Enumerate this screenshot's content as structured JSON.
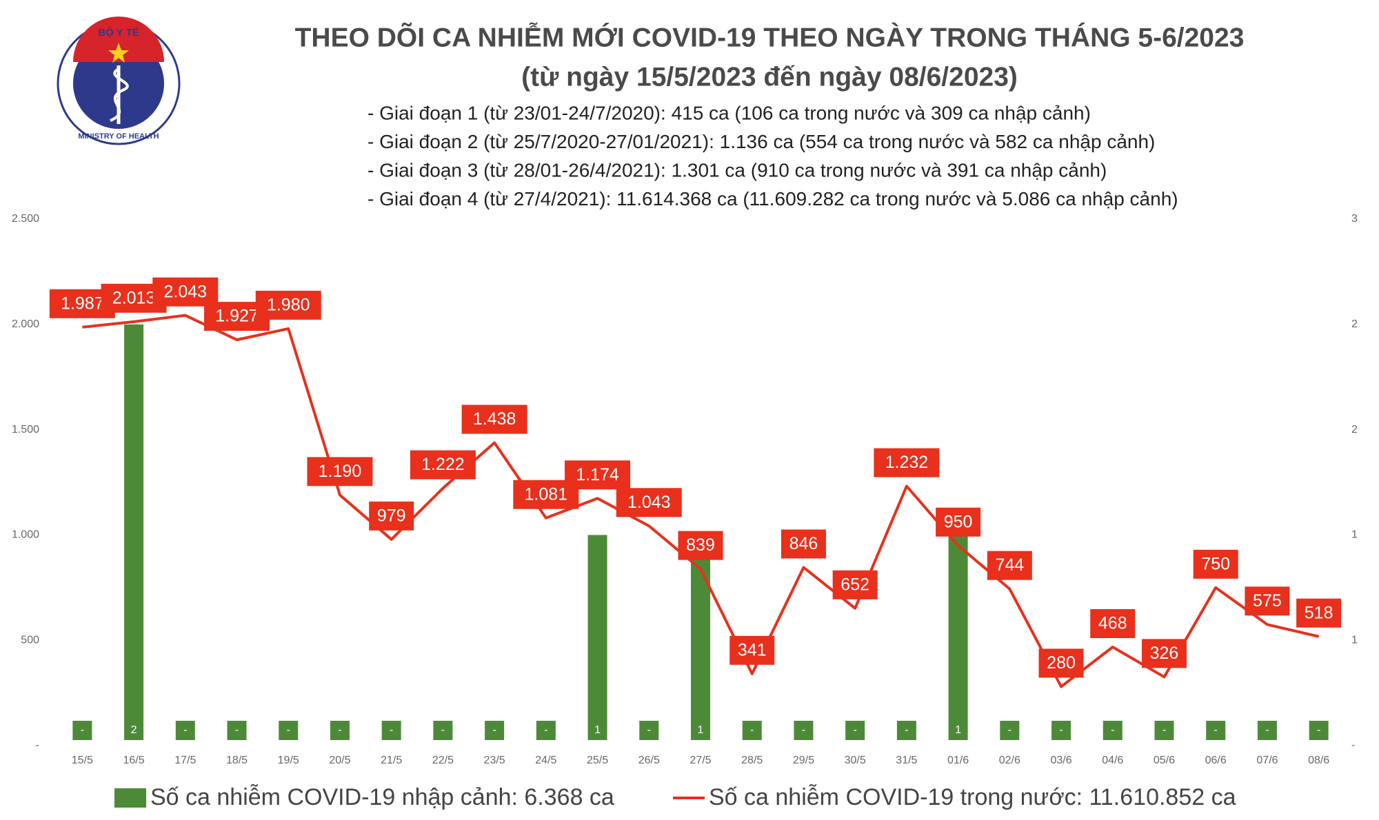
{
  "logo": {
    "top": "BỘ Y TẾ",
    "bottom": "MINISTRY OF HEALTH"
  },
  "chart_data": {
    "type": "combo",
    "title": "THEO DÕI CA NHIỄM MỚI COVID-19 THEO NGÀY TRONG THÁNG 5-6/2023",
    "subtitle": "(từ ngày 15/5/2023 đến ngày 08/6/2023)",
    "annotations": [
      "- Giai đoạn 1 (từ 23/01-24/7/2020): 415 ca (106 ca trong nước và 309 ca nhập cảnh)",
      "- Giai đoạn 2 (từ 25/7/2020-27/01/2021): 1.136 ca (554 ca trong nước và 582 ca nhập cảnh)",
      "- Giai đoạn 3 (từ 28/01-26/4/2021): 1.301 ca (910 ca trong nước và 391 ca nhập cảnh)",
      "- Giai đoạn 4 (từ 27/4/2021): 11.614.368 ca (11.609.282 ca trong nước và 5.086 ca nhập cảnh)"
    ],
    "categories": [
      "15/5",
      "16/5",
      "17/5",
      "18/5",
      "19/5",
      "20/5",
      "21/5",
      "22/5",
      "23/5",
      "24/5",
      "25/5",
      "26/5",
      "27/5",
      "28/5",
      "29/5",
      "30/5",
      "31/5",
      "01/6",
      "02/6",
      "03/6",
      "04/6",
      "05/6",
      "06/6",
      "07/6",
      "08/6"
    ],
    "series": [
      {
        "name": "Số ca nhiễm COVID-19 nhập cảnh: 6.368 ca",
        "type": "bar",
        "axis": "y2",
        "color": "#4c8a38",
        "values": [
          0,
          2,
          0,
          0,
          0,
          0,
          0,
          0,
          0,
          0,
          1,
          0,
          1,
          0,
          0,
          0,
          0,
          1,
          0,
          0,
          0,
          0,
          0,
          0,
          0
        ],
        "value_labels": [
          "-",
          "2",
          "-",
          "-",
          "-",
          "-",
          "-",
          "-",
          "-",
          "-",
          "1",
          "-",
          "1",
          "-",
          "-",
          "-",
          "-",
          "1",
          "-",
          "-",
          "-",
          "-",
          "-",
          "-",
          "-"
        ]
      },
      {
        "name": "Số ca nhiễm COVID-19 trong nước: 11.610.852 ca",
        "type": "line",
        "color": "#e8301c",
        "values": [
          1987,
          2013,
          2043,
          1927,
          1980,
          1190,
          979,
          1222,
          1438,
          1081,
          1174,
          1043,
          839,
          341,
          846,
          652,
          1232,
          950,
          744,
          280,
          468,
          326,
          750,
          575,
          518
        ],
        "value_labels": [
          "1.987",
          "2.013",
          "2.043",
          "1.927",
          "1.980",
          "1.190",
          "979",
          "1.222",
          "1.438",
          "1.081",
          "1.174",
          "1.043",
          "839",
          "341",
          "846",
          "652",
          "1.232",
          "950",
          "744",
          "280",
          "468",
          "326",
          "750",
          "575",
          "518"
        ]
      }
    ],
    "ylim": [
      0,
      2500
    ],
    "yticks": [
      {
        "value": 0,
        "label": "-"
      },
      500,
      {
        "value": 1000,
        "label": "1.000"
      },
      {
        "value": 1500,
        "label": "1.500"
      },
      {
        "value": 2000,
        "label": "2.000"
      },
      {
        "value": 2500,
        "label": "2.500"
      }
    ],
    "y2lim": [
      0,
      2.5
    ],
    "y2ticks": [
      {
        "value": 0,
        "label": "-"
      },
      {
        "value": 0.5,
        "label": "1"
      },
      1,
      {
        "value": 1.5,
        "label": "2"
      },
      2,
      {
        "value": 2.5,
        "label": "3"
      }
    ],
    "grid": false
  }
}
